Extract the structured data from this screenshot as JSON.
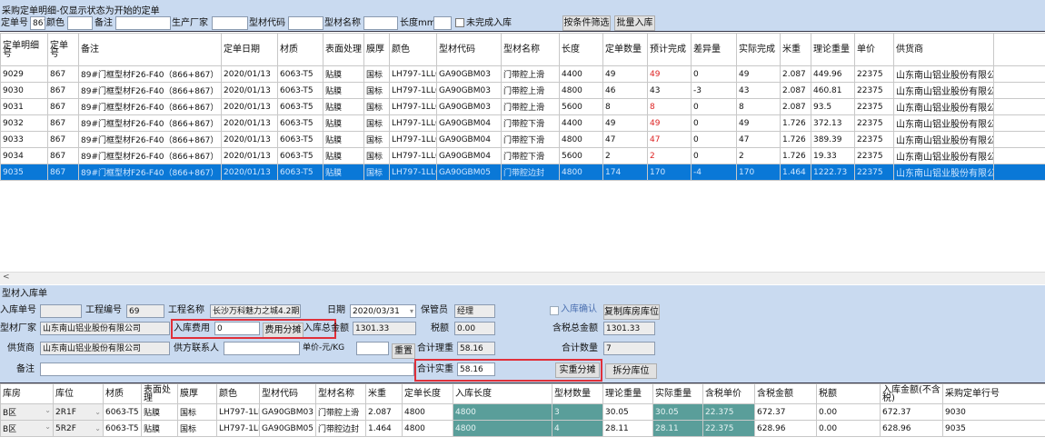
{
  "window_title": "采购定单明细-仅显示状态为开始的定单",
  "filters": {
    "order_no_label": "定单号",
    "order_no": "867",
    "color_label": "颜色",
    "color": "",
    "remark_label": "备注",
    "remark": "",
    "maker_label": "生产厂家",
    "maker": "",
    "code_label": "型材代码",
    "code": "",
    "name_label": "型材名称",
    "name": "",
    "length_label": "长度mm",
    "length": "",
    "incomplete_label": "未完成入库",
    "filter_btn": "按条件筛选",
    "batch_btn": "批量入库"
  },
  "grid1": {
    "headers": [
      "定单明细号",
      "定单号",
      "备注",
      "定单日期",
      "材质",
      "表面处理",
      "膜厚",
      "颜色",
      "型材代码",
      "型材名称",
      "长度",
      "定单数量",
      "预计完成",
      "差异量",
      "实际完成",
      "米重",
      "理论重量",
      "单价",
      "供货商"
    ],
    "rows": [
      [
        "9029",
        "867",
        "89#门框型材F26-F40（866+867）",
        "2020/01/13",
        "6063-T5",
        "贴膜",
        "国标",
        "LH797-1LL0",
        "GA90GBM03",
        "门带腔上滑",
        "4400",
        "49",
        "49",
        "0",
        "49",
        "2.087",
        "449.96",
        "22375",
        "山东南山铝业股份有限公司"
      ],
      [
        "9030",
        "867",
        "89#门框型材F26-F40（866+867）",
        "2020/01/13",
        "6063-T5",
        "贴膜",
        "国标",
        "LH797-1LL0",
        "GA90GBM03",
        "门带腔上滑",
        "4800",
        "46",
        "43",
        "-3",
        "43",
        "2.087",
        "460.81",
        "22375",
        "山东南山铝业股份有限公司"
      ],
      [
        "9031",
        "867",
        "89#门框型材F26-F40（866+867）",
        "2020/01/13",
        "6063-T5",
        "贴膜",
        "国标",
        "LH797-1LL0",
        "GA90GBM03",
        "门带腔上滑",
        "5600",
        "8",
        "8",
        "0",
        "8",
        "2.087",
        "93.5",
        "22375",
        "山东南山铝业股份有限公司"
      ],
      [
        "9032",
        "867",
        "89#门框型材F26-F40（866+867）",
        "2020/01/13",
        "6063-T5",
        "贴膜",
        "国标",
        "LH797-1LL0",
        "GA90GBM04",
        "门带腔下滑",
        "4400",
        "49",
        "49",
        "0",
        "49",
        "1.726",
        "372.13",
        "22375",
        "山东南山铝业股份有限公司"
      ],
      [
        "9033",
        "867",
        "89#门框型材F26-F40（866+867）",
        "2020/01/13",
        "6063-T5",
        "贴膜",
        "国标",
        "LH797-1LL0",
        "GA90GBM04",
        "门带腔下滑",
        "4800",
        "47",
        "47",
        "0",
        "47",
        "1.726",
        "389.39",
        "22375",
        "山东南山铝业股份有限公司"
      ],
      [
        "9034",
        "867",
        "89#门框型材F26-F40（866+867）",
        "2020/01/13",
        "6063-T5",
        "贴膜",
        "国标",
        "LH797-1LL0",
        "GA90GBM04",
        "门带腔下滑",
        "5600",
        "2",
        "2",
        "0",
        "2",
        "1.726",
        "19.33",
        "22375",
        "山东南山铝业股份有限公司"
      ],
      [
        "9035",
        "867",
        "89#门框型材F26-F40（866+867）",
        "2020/01/13",
        "6063-T5",
        "贴膜",
        "国标",
        "LH797-1LL0",
        "GA90GBM05",
        "门带腔边封",
        "4800",
        "174",
        "170",
        "-4",
        "170",
        "1.464",
        "1222.73",
        "22375",
        "山东南山铝业股份有限公司"
      ]
    ],
    "red_rows": [
      0,
      2,
      3,
      4,
      5
    ],
    "selected_row": 6
  },
  "receipt": {
    "section_title": "型材入库单",
    "no_label": "入库单号",
    "no": "",
    "proj_no_label": "工程编号",
    "proj_no": "69",
    "proj_name_label": "工程名称",
    "proj_name": "长沙万科魅力之城4.2期",
    "date_label": "日期",
    "date": "2020/03/31",
    "keeper_label": "保管员",
    "keeper": "经理",
    "confirm_label": "入库确认",
    "copy_btn": "复制库房库位",
    "maker_label": "型材厂家",
    "maker": "山东南山铝业股份有限公司",
    "fee_label": "入库费用",
    "fee": "0",
    "fee_btn": "费用分摊",
    "total_label": "入库总金额",
    "total": "1301.33",
    "tax_label": "税额",
    "tax": "0.00",
    "total_tax_label": "含税总金额",
    "total_tax": "1301.33",
    "supplier_label": "供货商",
    "supplier": "山东南山铝业股份有限公司",
    "contact_label": "供方联系人",
    "contact": "",
    "price_label": "单价-元/KG",
    "price": "",
    "reset_btn": "重置",
    "theo_label": "合计理重",
    "theo": "58.16",
    "qty_label": "合计数量",
    "qty": "7",
    "remark_label": "备注",
    "remark": "",
    "actual_label": "合计实重",
    "actual": "58.16",
    "actual_btn": "实重分摊",
    "split_btn": "拆分库位"
  },
  "grid2": {
    "headers": [
      "库房",
      "库位",
      "材质",
      "表面处理",
      "膜厚",
      "颜色",
      "型材代码",
      "型材名称",
      "米重",
      "定单长度",
      "入库长度",
      "型材数量",
      "理论重量",
      "实际重量",
      "含税单价",
      "含税金额",
      "税额",
      "入库金额(不含税)",
      "采购定单行号"
    ],
    "rows": [
      [
        "B区",
        "2R1F",
        "6063-T5",
        "贴膜",
        "国标",
        "LH797-1LL0",
        "GA90GBM03",
        "门带腔上滑",
        "2.087",
        "4800",
        "4800",
        "3",
        "30.05",
        "30.05",
        "22.375",
        "672.37",
        "0.00",
        "672.37",
        "9030"
      ],
      [
        "B区",
        "5R2F",
        "6063-T5",
        "贴膜",
        "国标",
        "LH797-1LL0",
        "GA90GBM05",
        "门带腔边封",
        "1.464",
        "4800",
        "4800",
        "4",
        "28.11",
        "28.11",
        "22.375",
        "628.96",
        "0.00",
        "628.96",
        "9035"
      ]
    ]
  },
  "colors": {
    "selected": "#0a78d7",
    "teal": "#5a9e9a",
    "highlight_box": "#e0303a",
    "panel": "#c9daf0"
  }
}
